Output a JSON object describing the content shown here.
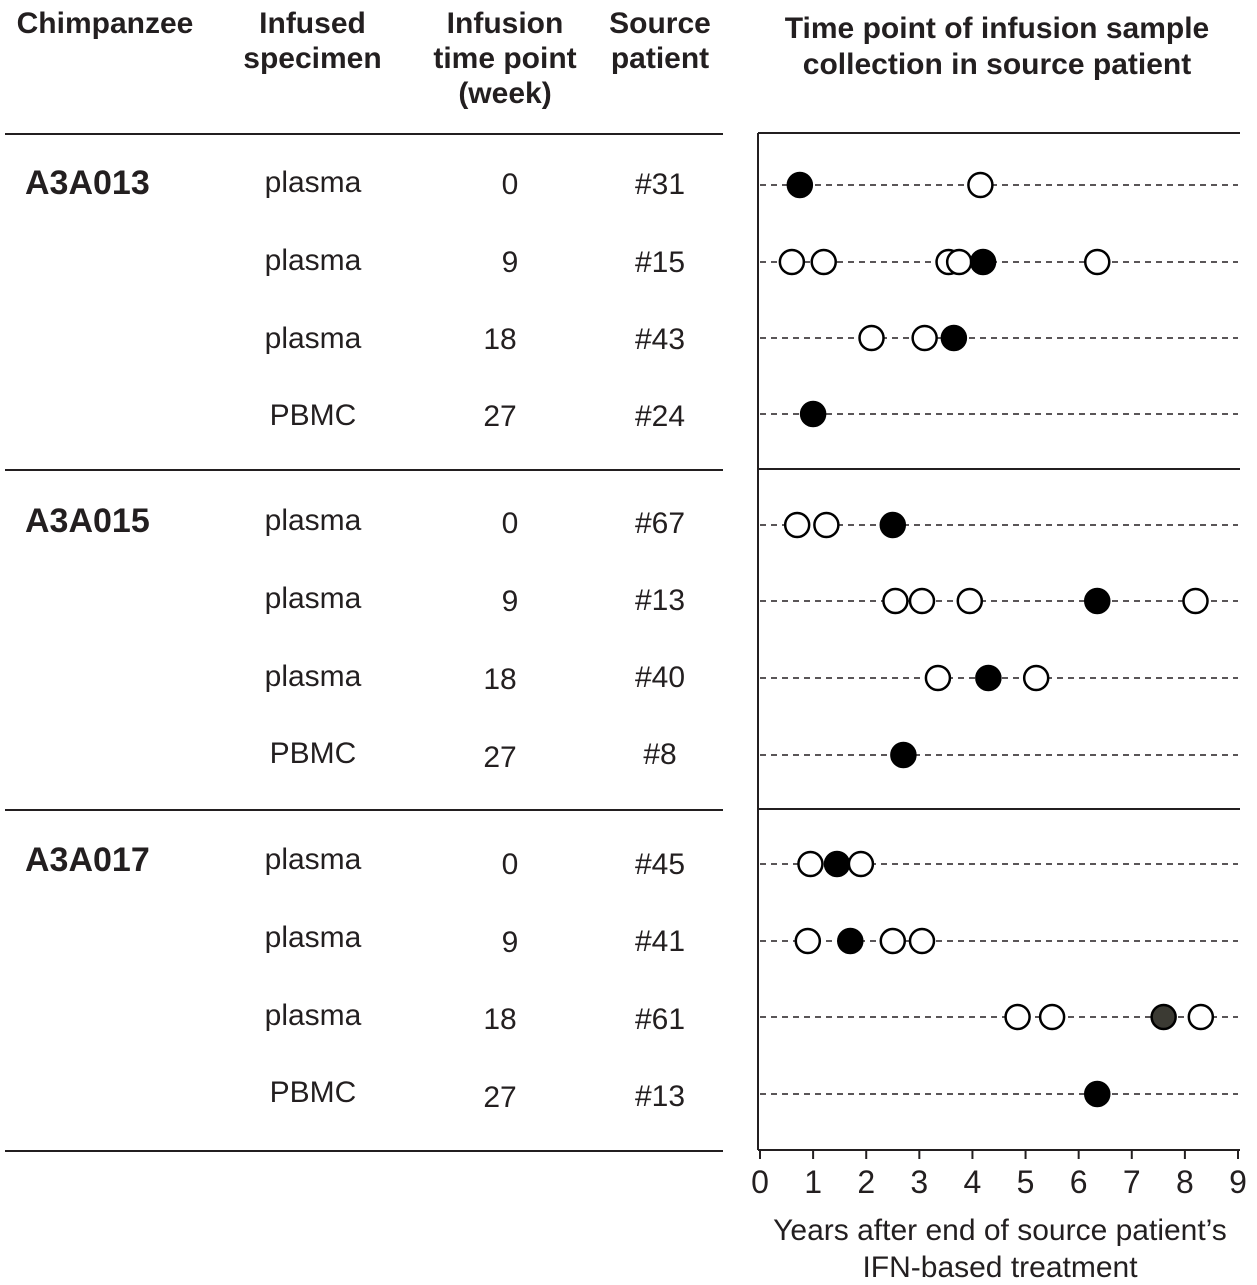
{
  "table": {
    "headers": {
      "chimpanzee": "Chimpanzee",
      "specimen_1": "Infused",
      "specimen_2": "specimen",
      "infusion_1": "Infusion",
      "infusion_2": "time point",
      "infusion_3": "(week)",
      "source_1": "Source",
      "source_2": "patient"
    },
    "groups": [
      {
        "chimpanzee": "A3A013",
        "rows": [
          {
            "specimen": "plasma",
            "week": "0",
            "patient": "#31"
          },
          {
            "specimen": "plasma",
            "week": "9",
            "patient": "#15"
          },
          {
            "specimen": "plasma",
            "week": "18",
            "patient": "#43"
          },
          {
            "specimen": "PBMC",
            "week": "27",
            "patient": "#24"
          }
        ]
      },
      {
        "chimpanzee": "A3A015",
        "rows": [
          {
            "specimen": "plasma",
            "week": "0",
            "patient": "#67"
          },
          {
            "specimen": "plasma",
            "week": "9",
            "patient": "#13"
          },
          {
            "specimen": "plasma",
            "week": "18",
            "patient": "#40"
          },
          {
            "specimen": "PBMC",
            "week": "27",
            "patient": "#8"
          }
        ]
      },
      {
        "chimpanzee": "A3A017",
        "rows": [
          {
            "specimen": "plasma",
            "week": "0",
            "patient": "#45"
          },
          {
            "specimen": "plasma",
            "week": "9",
            "patient": "#41"
          },
          {
            "specimen": "plasma",
            "week": "18",
            "patient": "#61"
          },
          {
            "specimen": "PBMC",
            "week": "27",
            "patient": "#13"
          }
        ]
      }
    ]
  },
  "chart_data": {
    "type": "scatter",
    "title_lines": [
      "Time point of infusion sample",
      "collection in source patient"
    ],
    "xlabel_lines": [
      "Years after end of source patient’s",
      "IFN-based treatment"
    ],
    "xlim": [
      0,
      9
    ],
    "xticks": [
      0,
      1,
      2,
      3,
      4,
      5,
      6,
      7,
      8,
      9
    ],
    "grid": "dashed horizontal line per row",
    "colors": {
      "filled": "#000000",
      "filled_gray": "#3b3a33",
      "open_fill": "#ffffff",
      "stroke": "#000000"
    },
    "rows": [
      {
        "patient": "#31",
        "points": [
          {
            "x": 0.75,
            "fill": "filled"
          },
          {
            "x": 4.15,
            "fill": "open"
          }
        ]
      },
      {
        "patient": "#15",
        "points": [
          {
            "x": 0.6,
            "fill": "open"
          },
          {
            "x": 1.2,
            "fill": "open"
          },
          {
            "x": 3.55,
            "fill": "open"
          },
          {
            "x": 3.75,
            "fill": "open"
          },
          {
            "x": 4.2,
            "fill": "filled"
          },
          {
            "x": 6.35,
            "fill": "open"
          }
        ]
      },
      {
        "patient": "#43",
        "points": [
          {
            "x": 2.1,
            "fill": "open"
          },
          {
            "x": 3.1,
            "fill": "open"
          },
          {
            "x": 3.65,
            "fill": "filled"
          }
        ]
      },
      {
        "patient": "#24",
        "points": [
          {
            "x": 1.0,
            "fill": "filled"
          }
        ]
      },
      {
        "patient": "#67",
        "points": [
          {
            "x": 0.7,
            "fill": "open"
          },
          {
            "x": 1.25,
            "fill": "open"
          },
          {
            "x": 2.5,
            "fill": "filled"
          }
        ]
      },
      {
        "patient": "#13",
        "points": [
          {
            "x": 2.55,
            "fill": "open"
          },
          {
            "x": 3.05,
            "fill": "open"
          },
          {
            "x": 3.95,
            "fill": "open"
          },
          {
            "x": 6.35,
            "fill": "filled"
          },
          {
            "x": 8.2,
            "fill": "open"
          }
        ]
      },
      {
        "patient": "#40",
        "points": [
          {
            "x": 3.35,
            "fill": "open"
          },
          {
            "x": 4.3,
            "fill": "filled"
          },
          {
            "x": 5.2,
            "fill": "open"
          }
        ]
      },
      {
        "patient": "#8",
        "points": [
          {
            "x": 2.7,
            "fill": "filled"
          }
        ]
      },
      {
        "patient": "#45",
        "points": [
          {
            "x": 0.95,
            "fill": "open"
          },
          {
            "x": 1.45,
            "fill": "filled"
          },
          {
            "x": 1.9,
            "fill": "open"
          }
        ]
      },
      {
        "patient": "#41",
        "points": [
          {
            "x": 0.9,
            "fill": "open"
          },
          {
            "x": 1.7,
            "fill": "filled"
          },
          {
            "x": 2.5,
            "fill": "open"
          },
          {
            "x": 3.05,
            "fill": "open"
          }
        ]
      },
      {
        "patient": "#61",
        "points": [
          {
            "x": 4.85,
            "fill": "open"
          },
          {
            "x": 5.5,
            "fill": "open"
          },
          {
            "x": 7.6,
            "fill": "filled_gray"
          },
          {
            "x": 8.3,
            "fill": "open"
          }
        ]
      },
      {
        "patient": "#13",
        "points": [
          {
            "x": 6.35,
            "fill": "filled"
          }
        ]
      }
    ]
  }
}
